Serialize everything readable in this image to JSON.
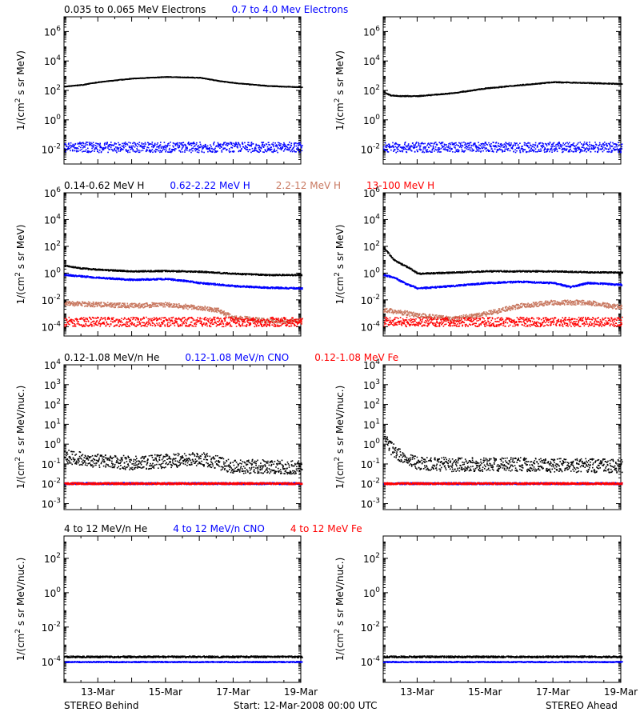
{
  "colors": {
    "black": "#000000",
    "blue": "#0000ff",
    "red": "#ff0000",
    "tan": "#c87860",
    "frame": "#000000"
  },
  "footer": {
    "left": "STEREO Behind",
    "center": "Start: 12-Mar-2008 00:00 UTC",
    "right": "STEREO Ahead"
  },
  "chart_data": [
    {
      "type": "scatter",
      "row": "electrons",
      "panel": "left",
      "legend": [
        {
          "label": "0.035 to 0.065 MeV Electrons",
          "color": "#000000"
        },
        {
          "label": "0.7 to 4.0 Mev Electrons",
          "color": "#0000ff"
        }
      ],
      "ylabel": "1/(cm2 s sr MeV)",
      "yscale": "log",
      "ylim": [
        0.001,
        10000000
      ],
      "yticks": [
        "10-2",
        "100",
        "102",
        "104",
        "106"
      ],
      "xlabel": "",
      "xlim": [
        0,
        7
      ],
      "xticks": [],
      "series": [
        {
          "color": "#000000",
          "noise": 0.02,
          "x": [
            0,
            0.5,
            1,
            2,
            3,
            4,
            4.5,
            5,
            6,
            7
          ],
          "y": [
            200,
            260,
            400,
            700,
            900,
            800,
            500,
            350,
            220,
            180
          ]
        },
        {
          "color": "#0000ff",
          "noise": 0.35,
          "x": [
            0,
            7
          ],
          "y": [
            0.015,
            0.015
          ]
        }
      ]
    },
    {
      "type": "scatter",
      "row": "electrons",
      "panel": "right",
      "legend": [],
      "ylabel": "1/(cm2 s sr MeV)",
      "yscale": "log",
      "ylim": [
        0.001,
        10000000
      ],
      "yticks": [
        "10-2",
        "100",
        "102",
        "104",
        "106"
      ],
      "xlabel": "",
      "xlim": [
        0,
        7
      ],
      "xticks": [],
      "series": [
        {
          "color": "#000000",
          "noise": 0.03,
          "x": [
            0,
            0.2,
            0.5,
            1,
            2,
            3,
            4,
            5,
            6,
            7
          ],
          "y": [
            80,
            50,
            45,
            45,
            70,
            150,
            250,
            400,
            350,
            300
          ]
        },
        {
          "color": "#0000ff",
          "noise": 0.35,
          "x": [
            0,
            7
          ],
          "y": [
            0.015,
            0.015
          ]
        }
      ]
    },
    {
      "type": "scatter",
      "row": "protons",
      "panel": "left",
      "legend": [
        {
          "label": "0.14-0.62 MeV H",
          "color": "#000000"
        },
        {
          "label": "0.62-2.22 MeV H",
          "color": "#0000ff"
        },
        {
          "label": "2.2-12 MeV H",
          "color": "#c87860"
        },
        {
          "label": "13-100 MeV H",
          "color": "#ff0000"
        }
      ],
      "ylabel": "1/(cm2 s sr MeV)",
      "yscale": "log",
      "ylim": [
        2e-05,
        1000000
      ],
      "yticks": [
        "10-4",
        "10-2",
        "100",
        "102",
        "104",
        "106"
      ],
      "xlabel": "",
      "xlim": [
        0,
        7
      ],
      "xticks": [],
      "series": [
        {
          "color": "#000000",
          "noise": 0.05,
          "x": [
            0,
            0.5,
            1,
            2,
            3,
            4,
            5,
            6,
            7
          ],
          "y": [
            4,
            2.5,
            2,
            1.5,
            1.6,
            1.4,
            1.0,
            0.8,
            0.8
          ]
        },
        {
          "color": "#0000ff",
          "noise": 0.06,
          "x": [
            0,
            1,
            2,
            3,
            3.5,
            4,
            5,
            6,
            7
          ],
          "y": [
            0.8,
            0.5,
            0.35,
            0.4,
            0.3,
            0.2,
            0.12,
            0.09,
            0.08
          ]
        },
        {
          "color": "#c87860",
          "noise": 0.18,
          "x": [
            0,
            1,
            2,
            3,
            3.8,
            4.5,
            5,
            6,
            7
          ],
          "y": [
            0.006,
            0.005,
            0.004,
            0.005,
            0.003,
            0.002,
            0.0005,
            0.0003,
            0.0003
          ]
        },
        {
          "color": "#ff0000",
          "noise": 0.35,
          "x": [
            0,
            7
          ],
          "y": [
            0.00025,
            0.00025
          ]
        }
      ]
    },
    {
      "type": "scatter",
      "row": "protons",
      "panel": "right",
      "legend": [],
      "ylabel": "1/(cm2 s sr MeV)",
      "yscale": "log",
      "ylim": [
        2e-05,
        1000000
      ],
      "yticks": [
        "10-4",
        "10-2",
        "100",
        "102",
        "104",
        "106"
      ],
      "xlabel": "",
      "xlim": [
        0,
        7
      ],
      "xticks": [],
      "series": [
        {
          "color": "#000000",
          "noise": 0.05,
          "x": [
            0,
            0.3,
            0.7,
            1,
            2,
            3,
            4,
            5,
            6,
            7
          ],
          "y": [
            80,
            10,
            3,
            1,
            1.2,
            1.5,
            1.5,
            1.5,
            1.3,
            1.2
          ]
        },
        {
          "color": "#0000ff",
          "noise": 0.06,
          "x": [
            0,
            0.3,
            0.7,
            1,
            2,
            3,
            4,
            5,
            5.5,
            6,
            7
          ],
          "y": [
            0.8,
            0.5,
            0.15,
            0.08,
            0.12,
            0.2,
            0.25,
            0.2,
            0.1,
            0.2,
            0.15
          ]
        },
        {
          "color": "#c87860",
          "noise": 0.18,
          "x": [
            0,
            1,
            2,
            3,
            4,
            5,
            6,
            7
          ],
          "y": [
            0.002,
            0.0008,
            0.0004,
            0.001,
            0.004,
            0.007,
            0.007,
            0.003
          ]
        },
        {
          "color": "#ff0000",
          "noise": 0.35,
          "x": [
            0,
            7
          ],
          "y": [
            0.00025,
            0.00025
          ]
        }
      ]
    },
    {
      "type": "scatter",
      "row": "low-energy-ions",
      "panel": "left",
      "legend": [
        {
          "label": "0.12-1.08 MeV/n He",
          "color": "#000000"
        },
        {
          "label": "0.12-1.08 MeV/n CNO",
          "color": "#0000ff"
        },
        {
          "label": "0.12-1.08 MeV Fe",
          "color": "#ff0000"
        }
      ],
      "ylabel": "1/(cm2 s sr MeV/nuc.)",
      "yscale": "log",
      "ylim": [
        0.0005,
        10000
      ],
      "yticks": [
        "10-3",
        "10-2",
        "10-1",
        "100",
        "101",
        "102",
        "103",
        "104"
      ],
      "xlabel": "",
      "xlim": [
        0,
        7
      ],
      "xticks": [],
      "series": [
        {
          "color": "#000000",
          "noise": 0.35,
          "x": [
            0,
            1,
            2,
            3,
            4,
            5,
            6,
            7
          ],
          "y": [
            0.25,
            0.15,
            0.12,
            0.15,
            0.2,
            0.08,
            0.08,
            0.07
          ]
        },
        {
          "color": "#0000ff",
          "noise": 0.05,
          "x": [
            0,
            7
          ],
          "y": [
            0.011,
            0.011
          ]
        },
        {
          "color": "#ff0000",
          "noise": 0.05,
          "x": [
            0,
            7
          ],
          "y": [
            0.011,
            0.011
          ]
        }
      ]
    },
    {
      "type": "scatter",
      "row": "low-energy-ions",
      "panel": "right",
      "legend": [],
      "ylabel": "1/(cm2 s sr MeV/nuc.)",
      "yscale": "log",
      "ylim": [
        0.0005,
        10000
      ],
      "yticks": [
        "10-3",
        "10-2",
        "10-1",
        "100",
        "101",
        "102",
        "103",
        "104"
      ],
      "xlabel": "",
      "xlim": [
        0,
        7
      ],
      "xticks": [],
      "series": [
        {
          "color": "#000000",
          "noise": 0.35,
          "x": [
            0,
            0.2,
            0.5,
            1,
            2,
            3,
            4,
            5,
            6,
            7
          ],
          "y": [
            3,
            0.7,
            0.25,
            0.12,
            0.1,
            0.1,
            0.1,
            0.09,
            0.09,
            0.08
          ]
        },
        {
          "color": "#0000ff",
          "noise": 0.05,
          "x": [
            0,
            7
          ],
          "y": [
            0.011,
            0.011
          ]
        },
        {
          "color": "#ff0000",
          "noise": 0.05,
          "x": [
            0,
            7
          ],
          "y": [
            0.011,
            0.011
          ]
        }
      ]
    },
    {
      "type": "scatter",
      "row": "high-energy-ions",
      "panel": "left",
      "legend": [
        {
          "label": "4 to 12 MeV/n He",
          "color": "#000000"
        },
        {
          "label": "4 to 12 MeV/n CNO",
          "color": "#0000ff"
        },
        {
          "label": "4 to 12 MeV Fe",
          "color": "#ff0000"
        }
      ],
      "ylabel": "1/(cm2 s sr MeV/nuc.)",
      "yscale": "log",
      "ylim": [
        6e-06,
        2000
      ],
      "yticks": [
        "10-4",
        "10-2",
        "100",
        "102"
      ],
      "xlabel": "STEREO Behind",
      "xlim": [
        0,
        7
      ],
      "xticks": [
        "13-Mar",
        "15-Mar",
        "17-Mar",
        "19-Mar"
      ],
      "xtick_values": [
        1,
        3,
        5,
        7
      ],
      "series": [
        {
          "color": "#000000",
          "noise": 0.05,
          "x": [
            0,
            7
          ],
          "y": [
            0.0002,
            0.0002
          ]
        },
        {
          "color": "#0000ff",
          "noise": 0.03,
          "x": [
            0,
            7
          ],
          "y": [
            0.0001,
            0.0001
          ]
        }
      ]
    },
    {
      "type": "scatter",
      "row": "high-energy-ions",
      "panel": "right",
      "legend": [],
      "ylabel": "1/(cm2 s sr MeV/nuc.)",
      "yscale": "log",
      "ylim": [
        6e-06,
        2000
      ],
      "yticks": [
        "10-4",
        "10-2",
        "100",
        "102"
      ],
      "xlabel": "STEREO Ahead",
      "xlim": [
        0,
        7
      ],
      "xticks": [
        "13-Mar",
        "15-Mar",
        "17-Mar",
        "19-Mar"
      ],
      "xtick_values": [
        1,
        3,
        5,
        7
      ],
      "series": [
        {
          "color": "#000000",
          "noise": 0.05,
          "x": [
            0,
            7
          ],
          "y": [
            0.0002,
            0.0002
          ]
        },
        {
          "color": "#0000ff",
          "noise": 0.03,
          "x": [
            0,
            7
          ],
          "y": [
            0.0001,
            0.0001
          ]
        }
      ]
    }
  ]
}
